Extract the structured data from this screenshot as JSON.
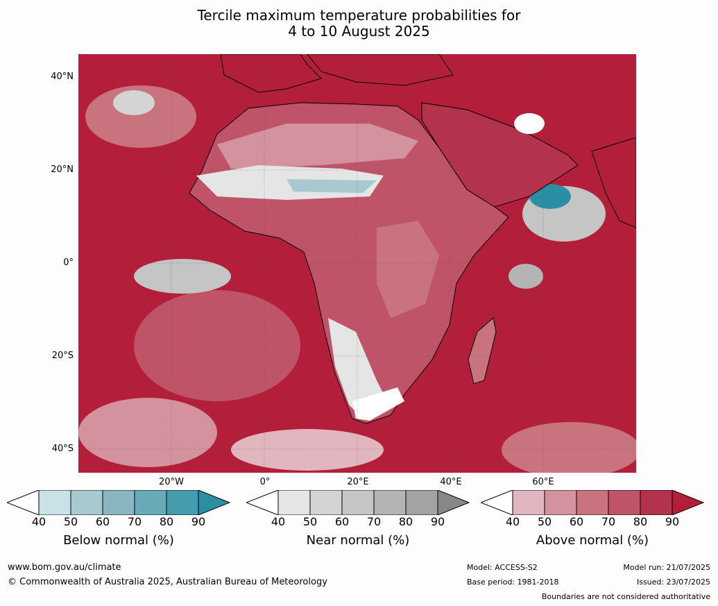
{
  "title": {
    "line1": "Tercile maximum temperature probabilities for",
    "line2": "4 to 10 August 2025"
  },
  "axes": {
    "lat_labels": [
      "40°N",
      "20°N",
      "0°",
      "20°S",
      "40°S"
    ],
    "lon_labels": [
      "20°W",
      "0°",
      "20°E",
      "40°E",
      "60°E"
    ]
  },
  "colorbars": [
    {
      "name": "Below normal (%)",
      "ticks": [
        "40",
        "50",
        "60",
        "70",
        "80",
        "90"
      ],
      "colors": [
        "#ffffff",
        "#c9e2e8",
        "#a8c9d0",
        "#8ab6c2",
        "#68abb8",
        "#449cad",
        "#2a8fa3"
      ]
    },
    {
      "name": "Near normal (%)",
      "ticks": [
        "40",
        "50",
        "60",
        "70",
        "80",
        "90"
      ],
      "colors": [
        "#ffffff",
        "#e5e5e5",
        "#d4d4d4",
        "#c5c5c5",
        "#b4b4b4",
        "#a3a3a3",
        "#878787"
      ]
    },
    {
      "name": "Above normal (%)",
      "ticks": [
        "40",
        "50",
        "60",
        "70",
        "80",
        "90"
      ],
      "colors": [
        "#ffffff",
        "#e1b6bf",
        "#d4919e",
        "#c9737f",
        "#bf5468",
        "#b3324c",
        "#b31e3a"
      ]
    }
  ],
  "footer": {
    "website": "www.bom.gov.au/climate",
    "copyright": "© Commonwealth of Australia 2025, Australian Bureau of Meteorology",
    "model": "Model: ACCESS-S2",
    "base_period": "Base period: 1981-2018",
    "model_run": "Model run: 21/07/2025",
    "issued": "Issued: 23/07/2025",
    "disclaimer": "Boundaries are not considered authoritative"
  }
}
